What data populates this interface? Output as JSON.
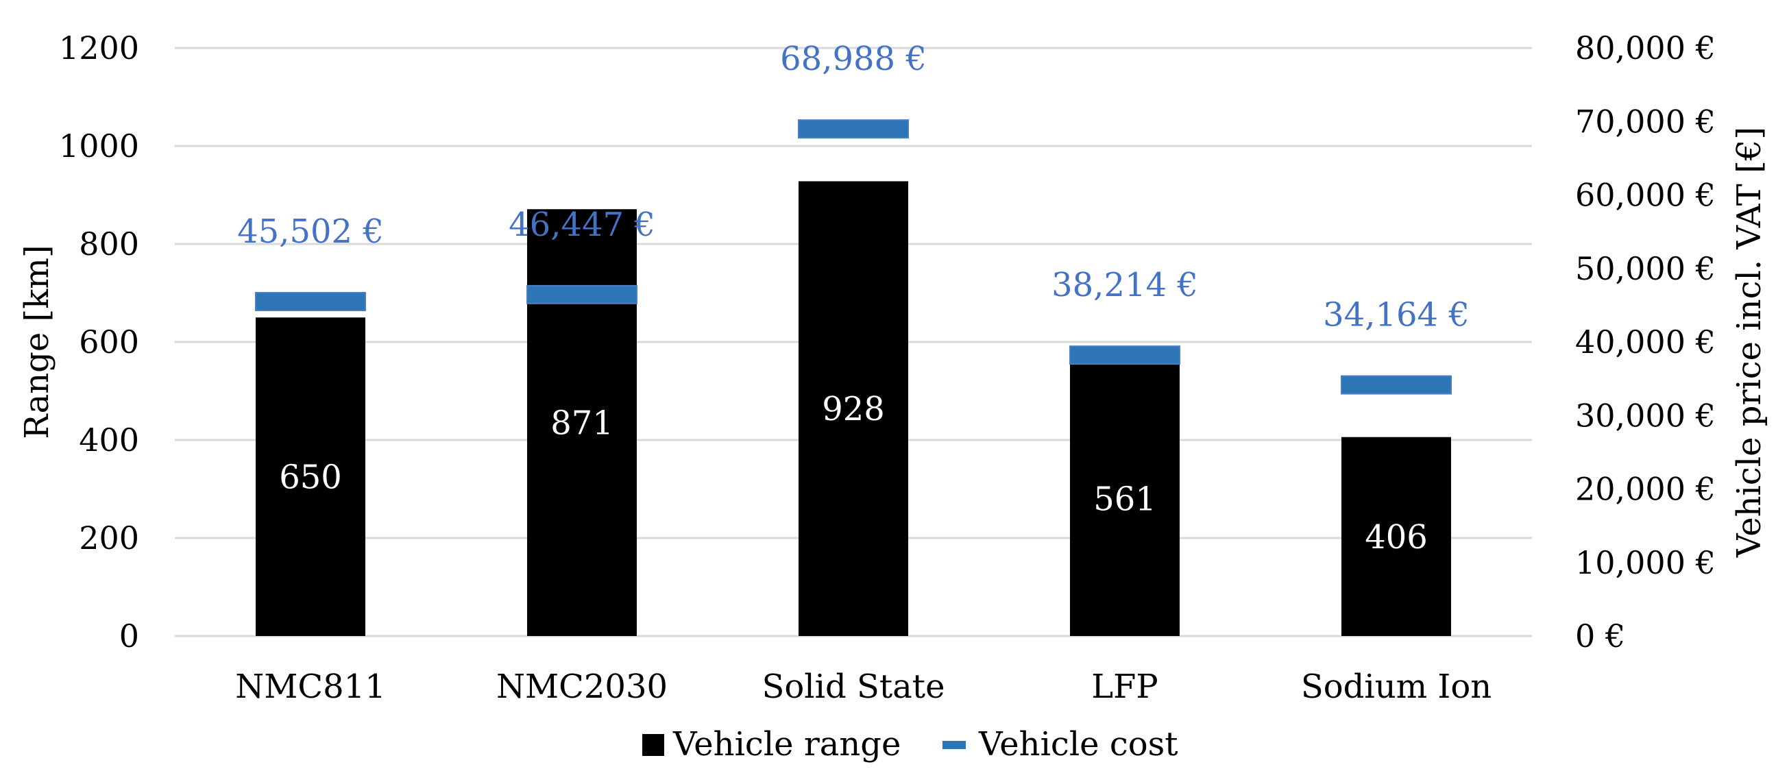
{
  "chart_data": {
    "type": "bar",
    "categories": [
      "NMC811",
      "NMC2030",
      "Solid State",
      "LFP",
      "Sodium Ion"
    ],
    "series": [
      {
        "name": "Vehicle range",
        "kind": "bar",
        "axis": "left",
        "color": "#000000",
        "values": [
          650,
          871,
          928,
          561,
          406
        ],
        "labels": [
          "650",
          "871",
          "928",
          "561",
          "406"
        ]
      },
      {
        "name": "Vehicle cost",
        "kind": "marker",
        "axis": "right",
        "color": "#2e75b6",
        "label_color": "#4472c4",
        "values": [
          45502,
          46447,
          68988,
          38214,
          34164
        ],
        "labels": [
          "45,502 €",
          "46,447 €",
          "68,988 €",
          "38,214 €",
          "34,164 €"
        ]
      }
    ],
    "ylabel": "Range [km]",
    "ylim": [
      0,
      1200
    ],
    "yticks": [
      0,
      200,
      400,
      600,
      800,
      1000,
      1200
    ],
    "ytick_labels": [
      "0",
      "200",
      "400",
      "600",
      "800",
      "1000",
      "1200"
    ],
    "y2label": "Vehicle price incl. VAT [€]",
    "y2lim": [
      0,
      80000
    ],
    "y2ticks": [
      0,
      10000,
      20000,
      30000,
      40000,
      50000,
      60000,
      70000,
      80000
    ],
    "y2tick_labels": [
      "0 €",
      "10,000 €",
      "20,000 €",
      "30,000 €",
      "40,000 €",
      "50,000 €",
      "60,000 €",
      "70,000 €",
      "80,000 €"
    ],
    "grid": true,
    "legend_position": "bottom-center"
  }
}
